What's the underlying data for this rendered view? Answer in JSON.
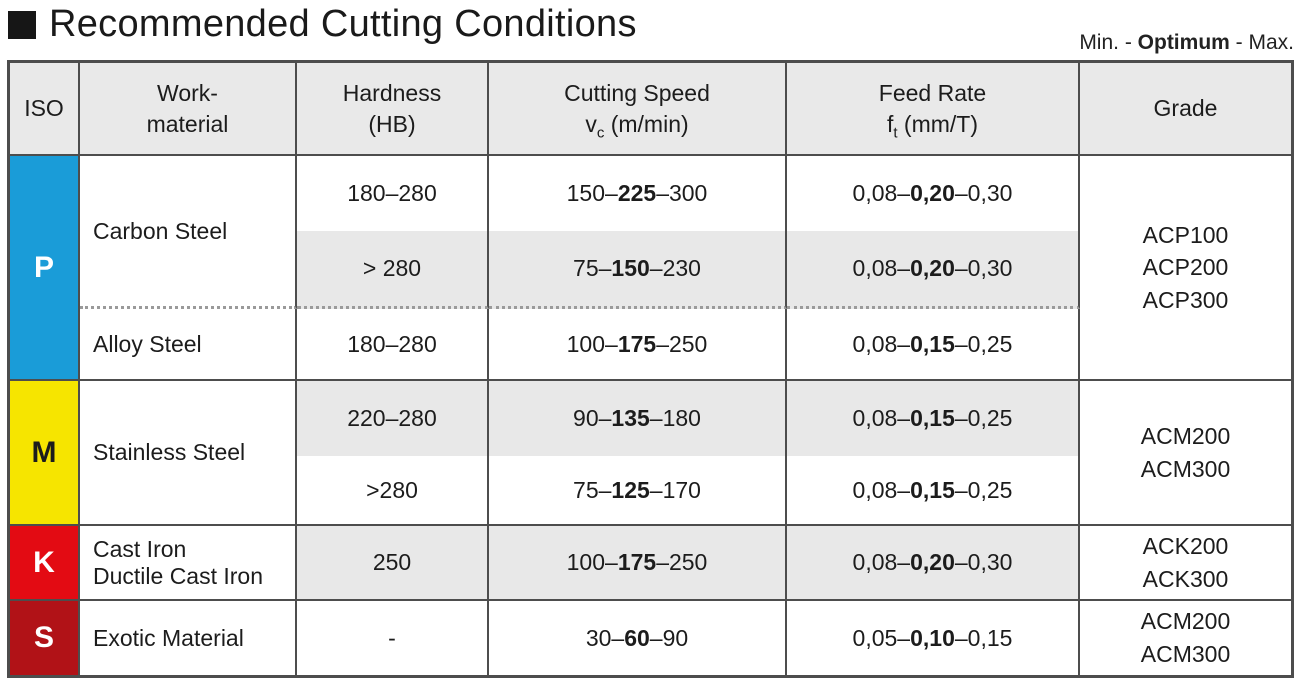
{
  "title": "Recommended Cutting Conditions",
  "legend": {
    "pre": "Min. - ",
    "optimum": "Optimum",
    "post": " - Max."
  },
  "header": {
    "iso": "ISO",
    "work_material": "Work-\nmaterial",
    "hardness": "Hardness\n(HB)",
    "cutting_speed_title": "Cutting Speed",
    "cutting_speed_symbol": "v",
    "cutting_speed_symbol_sub": "c",
    "cutting_speed_unit": " (m/min)",
    "feed_rate_title": "Feed Rate",
    "feed_rate_symbol": "f",
    "feed_rate_symbol_sub": "t",
    "feed_rate_unit": " (mm/T)",
    "grade": "Grade"
  },
  "sections": {
    "p": {
      "iso": "P",
      "color": "#1a9cd8",
      "grades": "ACP100\nACP200\nACP300",
      "materials": {
        "carbon": "Carbon Steel",
        "alloy": "Alloy Steel"
      }
    },
    "m": {
      "iso": "M",
      "color": "#f6e500",
      "grades": "ACM200\nACM300",
      "materials": {
        "stainless": "Stainless Steel"
      }
    },
    "k": {
      "iso": "K",
      "color": "#e30b13",
      "grades": "ACK200\nACK300",
      "materials": {
        "cast_iron": "Cast Iron\nDuctile Cast Iron"
      }
    },
    "s": {
      "iso": "S",
      "color": "#b11217",
      "grades": "ACM200\nACM300",
      "materials": {
        "exotic": "Exotic Material"
      }
    }
  },
  "rows": [
    {
      "hardness": "180–280",
      "speed": [
        "150–",
        "225",
        "–300"
      ],
      "feed": [
        "0,08–",
        "0,20",
        "–0,30"
      ]
    },
    {
      "hardness": "> 280",
      "speed": [
        "75–",
        "150",
        "–230"
      ],
      "feed": [
        "0,08–",
        "0,20",
        "–0,30"
      ]
    },
    {
      "hardness": "180–280",
      "speed": [
        "100–",
        "175",
        "–250"
      ],
      "feed": [
        "0,08–",
        "0,15",
        "–0,25"
      ]
    },
    {
      "hardness": "220–280",
      "speed": [
        "90–",
        "135",
        "–180"
      ],
      "feed": [
        "0,08–",
        "0,15",
        "–0,25"
      ]
    },
    {
      "hardness": ">280",
      "speed": [
        "75–",
        "125",
        "–170"
      ],
      "feed": [
        "0,08–",
        "0,15",
        "–0,25"
      ]
    },
    {
      "hardness": "250",
      "speed": [
        "100–",
        "175",
        "–250"
      ],
      "feed": [
        "0,08–",
        "0,20",
        "–0,30"
      ]
    },
    {
      "hardness": "-",
      "speed": [
        "30– ",
        "60",
        "–90"
      ],
      "feed": [
        "0,05–",
        "0,10",
        "–0,15"
      ]
    }
  ],
  "colors": {
    "row_shade": "#e8e8e8",
    "header_bg": "#e9e9e9",
    "border": "#4d4d4d",
    "dotted_divider": "#9a9a9a"
  }
}
